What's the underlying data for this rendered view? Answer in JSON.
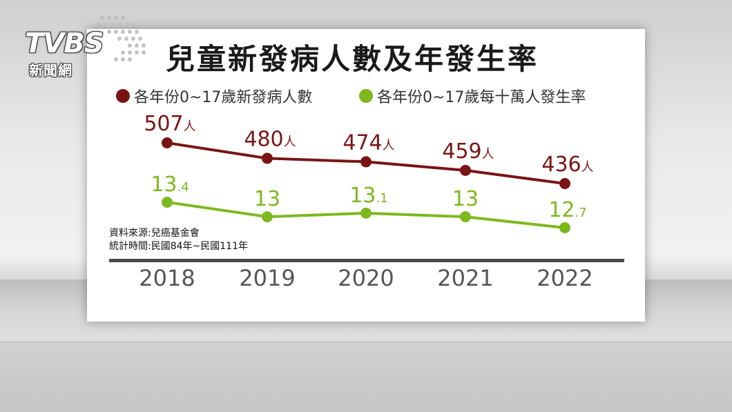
{
  "logo": {
    "text": "TVBS",
    "sub": "新聞網"
  },
  "chart_data": {
    "type": "line",
    "title": "兒童新發病人數及年發生率",
    "categories": [
      "2018",
      "2019",
      "2020",
      "2021",
      "2022"
    ],
    "series": [
      {
        "name": "各年份0~17歲新發病人數",
        "color": "#7a1414",
        "values": [
          507,
          480,
          474,
          459,
          436
        ],
        "labels": [
          {
            "main": "507",
            "small": "人"
          },
          {
            "main": "480",
            "small": "人"
          },
          {
            "main": "474",
            "small": "人"
          },
          {
            "main": "459",
            "small": "人"
          },
          {
            "main": "436",
            "small": "人"
          }
        ]
      },
      {
        "name": "各年份0~17歲每十萬人發生率",
        "color": "#7db81f",
        "values": [
          13.4,
          13,
          13.1,
          13,
          12.7
        ],
        "labels": [
          {
            "main": "13",
            "small": ".4"
          },
          {
            "main": "13",
            "small": ""
          },
          {
            "main": "13",
            "small": ".1"
          },
          {
            "main": "13",
            "small": ""
          },
          {
            "main": "12",
            "small": ".7"
          }
        ]
      }
    ],
    "legend_position": "top-left",
    "grid": false
  },
  "source": {
    "line1": "資料來源:兒癌基金會",
    "line2": "統計時間:民國84年~民國111年"
  }
}
